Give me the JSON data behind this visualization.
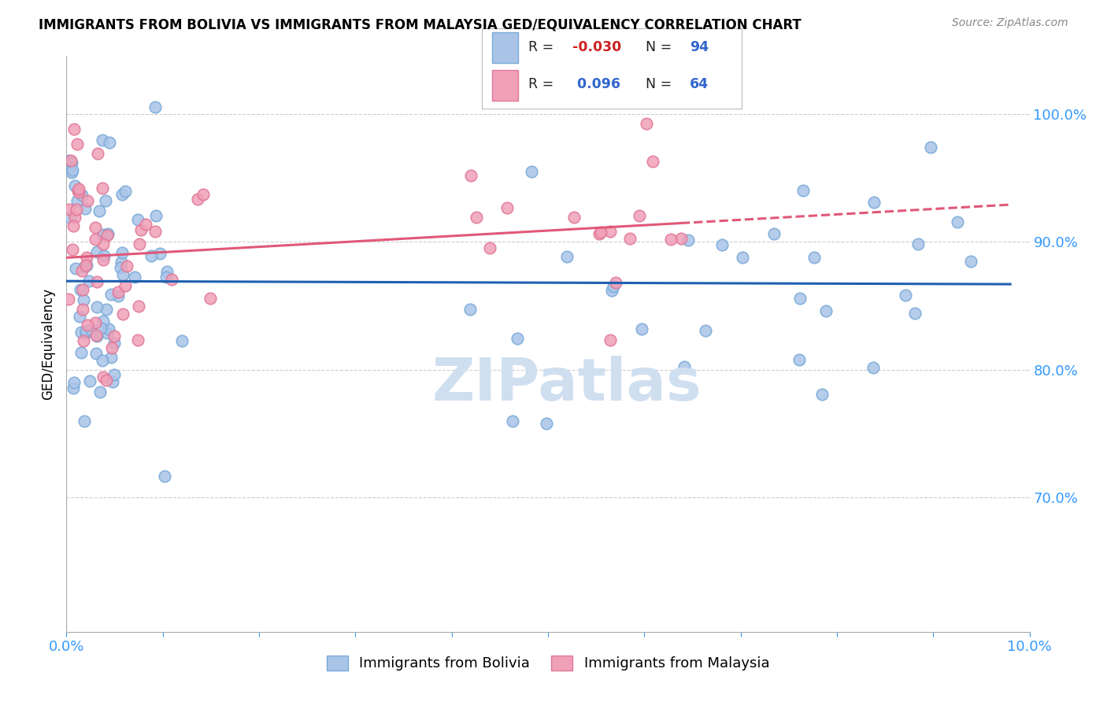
{
  "title": "IMMIGRANTS FROM BOLIVIA VS IMMIGRANTS FROM MALAYSIA GED/EQUIVALENCY CORRELATION CHART",
  "source": "Source: ZipAtlas.com",
  "ylabel": "GED/Equivalency",
  "xlim": [
    0.0,
    0.1
  ],
  "ylim": [
    0.595,
    1.045
  ],
  "bolivia_color": "#aac4e8",
  "malaysia_color": "#f0a0b8",
  "bolivia_line_color": "#2060b0",
  "malaysia_line_color": "#e05878",
  "bolivia_edge_color": "#7aaad8",
  "malaysia_edge_color": "#e07898",
  "watermark_color": "#d0dff0",
  "r_bolivia": "-0.030",
  "n_bolivia": "94",
  "r_malaysia": "0.096",
  "n_malaysia": "64",
  "r_color": "#3366cc",
  "r_neg_color": "#cc2222",
  "n_color": "#3366cc",
  "grid_color": "#cccccc",
  "axis_color": "#aaaaaa",
  "tick_color": "#3399ff",
  "title_fontsize": 12,
  "source_fontsize": 10,
  "seed": 17
}
